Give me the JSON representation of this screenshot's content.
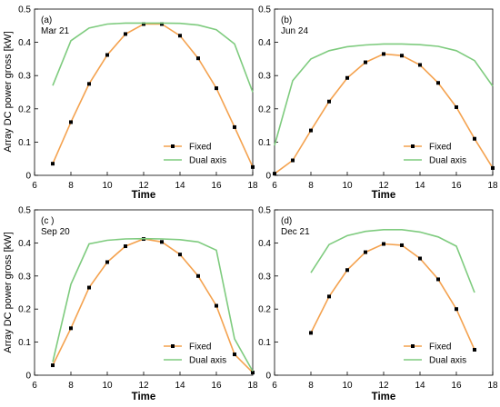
{
  "figure": {
    "y_axis_label": "Array DC power gross [kW]",
    "x_axis_label": "Time"
  },
  "colors": {
    "fixed": "#f4a24f",
    "fixed_marker": "#000000",
    "dual_axis": "#7ecb7e",
    "axis": "#000000"
  },
  "chart_data": [
    {
      "type": "line",
      "panel_label": "(a)",
      "date_label": "Mar 21",
      "xlabel": "Time",
      "ylabel": "Array DC power gross [kW]",
      "xlim": [
        6,
        18
      ],
      "ylim": [
        0,
        0.5
      ],
      "xticks": [
        6,
        8,
        10,
        12,
        14,
        16,
        18
      ],
      "yticks": [
        0,
        0.1,
        0.2,
        0.3,
        0.4,
        0.5
      ],
      "legend_position": "bottom-right",
      "series": [
        {
          "name": "Fixed",
          "x": [
            7,
            8,
            9,
            10,
            11,
            12,
            13,
            14,
            15,
            16,
            17,
            18
          ],
          "y": [
            0.035,
            0.16,
            0.275,
            0.362,
            0.425,
            0.455,
            0.455,
            0.42,
            0.352,
            0.262,
            0.145,
            0.025
          ]
        },
        {
          "name": "Dual axis",
          "x": [
            7,
            8,
            9,
            10,
            11,
            12,
            13,
            14,
            15,
            16,
            17,
            18
          ],
          "y": [
            0.27,
            0.405,
            0.443,
            0.455,
            0.458,
            0.458,
            0.458,
            0.457,
            0.452,
            0.438,
            0.395,
            0.25
          ]
        }
      ]
    },
    {
      "type": "line",
      "panel_label": "(b)",
      "date_label": "Jun 24",
      "xlabel": "Time",
      "ylabel": "",
      "xlim": [
        6,
        18
      ],
      "ylim": [
        0,
        0.5
      ],
      "xticks": [
        6,
        8,
        10,
        12,
        14,
        16,
        18
      ],
      "yticks": [
        0,
        0.1,
        0.2,
        0.3,
        0.4,
        0.5
      ],
      "legend_position": "bottom-right",
      "series": [
        {
          "name": "Fixed",
          "x": [
            6,
            7,
            8,
            9,
            10,
            11,
            12,
            13,
            14,
            15,
            16,
            17,
            18
          ],
          "y": [
            0.005,
            0.045,
            0.135,
            0.222,
            0.293,
            0.34,
            0.365,
            0.36,
            0.332,
            0.278,
            0.205,
            0.11,
            0.022
          ]
        },
        {
          "name": "Dual axis",
          "x": [
            6,
            7,
            8,
            9,
            10,
            11,
            12,
            13,
            14,
            15,
            16,
            17,
            18
          ],
          "y": [
            0.09,
            0.285,
            0.35,
            0.375,
            0.387,
            0.392,
            0.395,
            0.395,
            0.393,
            0.388,
            0.375,
            0.345,
            0.268
          ]
        }
      ]
    },
    {
      "type": "line",
      "panel_label": "(c )",
      "date_label": "Sep 20",
      "xlabel": "Time",
      "ylabel": "Array DC power gross [kW]",
      "xlim": [
        6,
        18
      ],
      "ylim": [
        0,
        0.5
      ],
      "xticks": [
        6,
        8,
        10,
        12,
        14,
        16,
        18
      ],
      "yticks": [
        0,
        0.1,
        0.2,
        0.3,
        0.4,
        0.5
      ],
      "legend_position": "bottom-right",
      "series": [
        {
          "name": "Fixed",
          "x": [
            7,
            8,
            9,
            10,
            11,
            12,
            13,
            14,
            15,
            16,
            17,
            18
          ],
          "y": [
            0.03,
            0.142,
            0.265,
            0.342,
            0.39,
            0.412,
            0.403,
            0.365,
            0.3,
            0.21,
            0.063,
            0.008
          ]
        },
        {
          "name": "Dual axis",
          "x": [
            7,
            8,
            9,
            10,
            11,
            12,
            13,
            14,
            15,
            16,
            17,
            18
          ],
          "y": [
            0.04,
            0.275,
            0.397,
            0.408,
            0.412,
            0.413,
            0.412,
            0.41,
            0.403,
            0.378,
            0.11,
            0.012
          ]
        }
      ]
    },
    {
      "type": "line",
      "panel_label": "(d)",
      "date_label": "Dec 21",
      "xlabel": "Time",
      "ylabel": "",
      "xlim": [
        6,
        18
      ],
      "ylim": [
        0,
        0.5
      ],
      "xticks": [
        6,
        8,
        10,
        12,
        14,
        16,
        18
      ],
      "yticks": [
        0,
        0.1,
        0.2,
        0.3,
        0.4,
        0.5
      ],
      "legend_position": "bottom-right",
      "series": [
        {
          "name": "Fixed",
          "x": [
            8,
            9,
            10,
            11,
            12,
            13,
            14,
            15,
            16,
            17
          ],
          "y": [
            0.128,
            0.238,
            0.318,
            0.372,
            0.397,
            0.393,
            0.353,
            0.29,
            0.2,
            0.077
          ]
        },
        {
          "name": "Dual axis",
          "x": [
            8,
            9,
            10,
            11,
            12,
            13,
            14,
            15,
            16,
            17
          ],
          "y": [
            0.31,
            0.395,
            0.422,
            0.435,
            0.44,
            0.44,
            0.433,
            0.418,
            0.39,
            0.25
          ]
        }
      ]
    }
  ]
}
